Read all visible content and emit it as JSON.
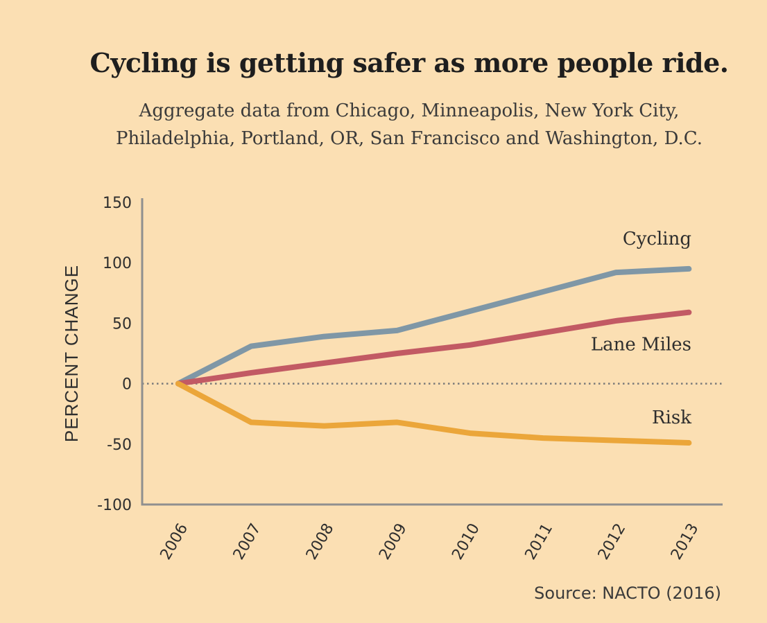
{
  "chart_data": {
    "type": "line",
    "title": "Cycling is getting safer as more people ride.",
    "subtitle": [
      "Aggregate data from Chicago, Minneapolis, New York City,",
      "Philadelphia, Portland, OR, San Francisco and Washington, D.C."
    ],
    "xlabel": "",
    "ylabel": "PERCENT CHANGE",
    "x": [
      "2006",
      "2007",
      "2008",
      "2009",
      "2010",
      "2011",
      "2012",
      "2013"
    ],
    "ylim": [
      -100,
      150
    ],
    "yticks": [
      "150",
      "100",
      "50",
      "0",
      "-50",
      "-100"
    ],
    "ytick_values": [
      150,
      100,
      50,
      0,
      -50,
      -100
    ],
    "series": [
      {
        "name": "Cycling",
        "color": "#7f97a6",
        "values": [
          0,
          31,
          39,
          44,
          60,
          76,
          92,
          95
        ]
      },
      {
        "name": "Lane Miles",
        "color": "#c25a64",
        "values": [
          0,
          9,
          17,
          25,
          32,
          42,
          52,
          59
        ]
      },
      {
        "name": "Risk",
        "color": "#eba63a",
        "values": [
          0,
          -32,
          -35,
          -32,
          -41,
          -45,
          -47,
          -49
        ]
      }
    ],
    "zero_line": true,
    "source": "Source: NACTO (2016)"
  }
}
